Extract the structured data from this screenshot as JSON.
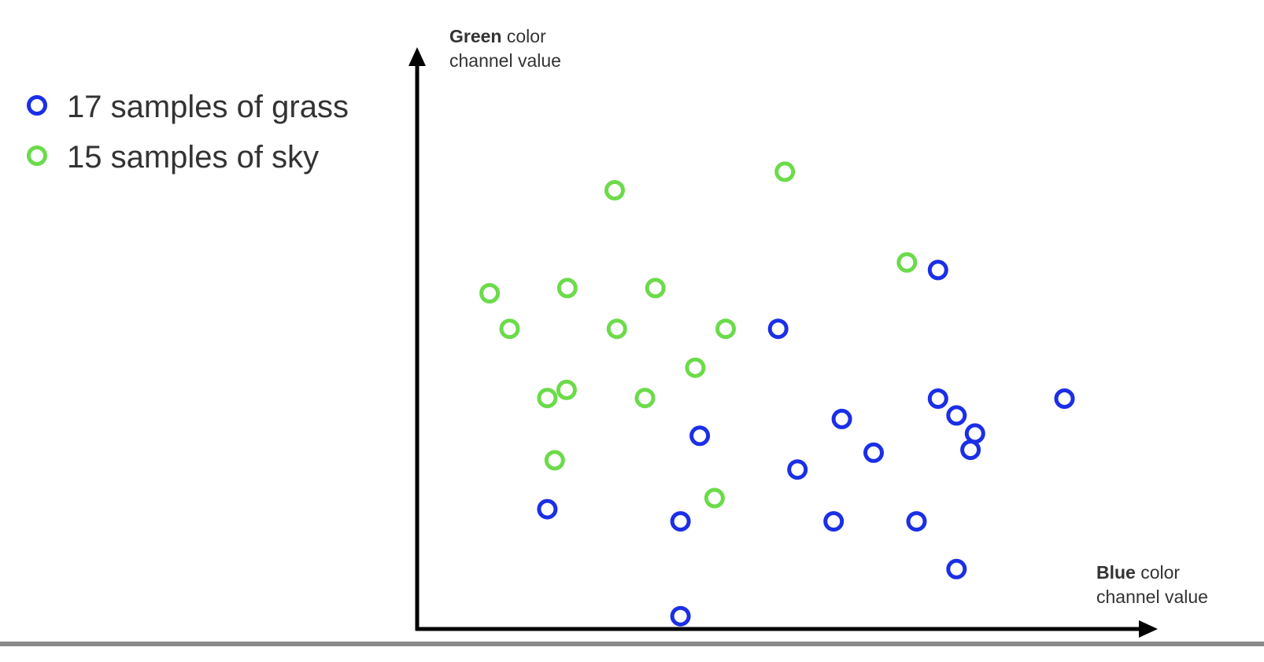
{
  "colors": {
    "grass": "#1a2fe6",
    "sky": "#6bdb4a",
    "axis": "#000000",
    "text": "#333333",
    "bottom_rule": "#8a8a8a"
  },
  "legend": {
    "items": [
      {
        "label": "17 samples of grass",
        "color": "#1a2fe6"
      },
      {
        "label": "15 samples of sky",
        "color": "#6bdb4a"
      }
    ]
  },
  "chart_data": {
    "type": "scatter",
    "title": "",
    "ylabel_bold": "Green",
    "ylabel_rest_line1": " color",
    "ylabel_line2": "channel value",
    "xlabel_bold": "Blue",
    "xlabel_rest_line1": " color",
    "xlabel_line2": "channel value",
    "xlim": [
      0,
      100
    ],
    "ylim": [
      0,
      100
    ],
    "legend_position": "top-left",
    "grid": false,
    "series": [
      {
        "name": "17 samples of grass",
        "color": "#1a2fe6",
        "points": [
          [
            70.4,
            61.7
          ],
          [
            48.8,
            51.6
          ],
          [
            70.4,
            39.6
          ],
          [
            72.9,
            36.7
          ],
          [
            87.5,
            39.6
          ],
          [
            57.4,
            36.1
          ],
          [
            75.4,
            33.6
          ],
          [
            61.7,
            30.3
          ],
          [
            74.8,
            30.8
          ],
          [
            38.2,
            33.2
          ],
          [
            51.4,
            27.4
          ],
          [
            17.6,
            20.6
          ],
          [
            35.6,
            18.5
          ],
          [
            56.3,
            18.5
          ],
          [
            67.5,
            18.5
          ],
          [
            72.9,
            10.3
          ],
          [
            35.6,
            2.2
          ]
        ]
      },
      {
        "name": "15 samples of sky",
        "color": "#6bdb4a",
        "points": [
          [
            49.7,
            78.6
          ],
          [
            26.7,
            75.4
          ],
          [
            66.2,
            63.0
          ],
          [
            9.8,
            57.7
          ],
          [
            20.3,
            58.6
          ],
          [
            32.2,
            58.6
          ],
          [
            12.5,
            51.6
          ],
          [
            27.0,
            51.6
          ],
          [
            41.7,
            51.6
          ],
          [
            37.6,
            44.9
          ],
          [
            17.6,
            39.7
          ],
          [
            20.2,
            41.1
          ],
          [
            30.8,
            39.7
          ],
          [
            18.6,
            29.0
          ],
          [
            40.2,
            22.5
          ]
        ]
      }
    ]
  }
}
